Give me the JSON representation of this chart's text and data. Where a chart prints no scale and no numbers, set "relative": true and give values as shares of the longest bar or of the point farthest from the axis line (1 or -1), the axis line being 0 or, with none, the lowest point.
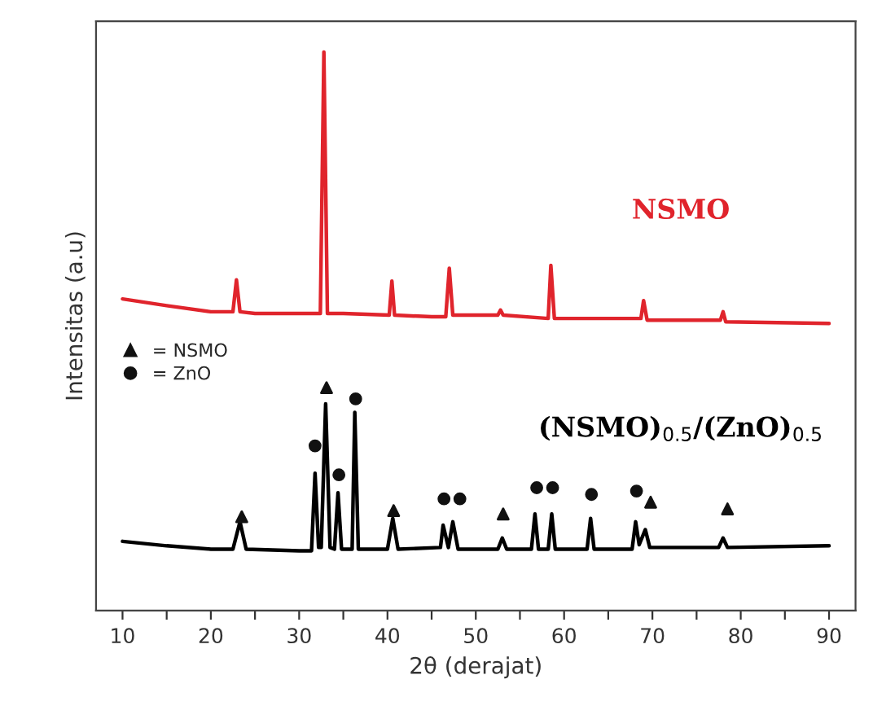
{
  "chart_data": {
    "type": "line",
    "xlabel": "2θ (derajat)",
    "ylabel": "Intensitas (a.u)",
    "relative": true,
    "tick_labels": "x",
    "grid": false,
    "legend": "left",
    "xlim": [
      7,
      93
    ],
    "xticks": [
      10,
      {
        "value": 15,
        "label": null
      },
      20,
      {
        "value": 25,
        "label": null
      },
      30,
      {
        "value": 35,
        "label": null
      },
      40,
      {
        "value": 45,
        "label": null
      },
      50,
      {
        "value": 55,
        "label": null
      },
      60,
      {
        "value": 65,
        "label": null
      },
      70,
      {
        "value": 75,
        "label": null
      },
      80,
      {
        "value": 85,
        "label": null
      },
      90
    ],
    "series": [
      {
        "name": "NSMO",
        "color": "#e0242c",
        "x": [
          10,
          15,
          20,
          22.5,
          22.9,
          23.3,
          25,
          32.4,
          32.8,
          33.2,
          35,
          40.2,
          40.5,
          40.8,
          45,
          46.6,
          47,
          47.4,
          52.5,
          52.8,
          53.1,
          58.2,
          58.5,
          58.9,
          68.7,
          69,
          69.4,
          77.7,
          78,
          78.3,
          90
        ],
        "values": [
          0.558,
          0.546,
          0.535,
          0.535,
          0.592,
          0.535,
          0.532,
          0.532,
          1.0,
          0.532,
          0.532,
          0.529,
          0.59,
          0.529,
          0.526,
          0.526,
          0.613,
          0.529,
          0.529,
          0.538,
          0.529,
          0.523,
          0.618,
          0.523,
          0.523,
          0.555,
          0.52,
          0.52,
          0.535,
          0.517,
          0.514
        ]
      },
      {
        "name": "(NSMO)$_{0.5}$/(ZnO)$_{0.5}$",
        "color": "#000000",
        "x": [
          10,
          15,
          20,
          22.5,
          23.3,
          24,
          30,
          31.4,
          31.8,
          32.2,
          32.5,
          33.0,
          33.5,
          34,
          34.4,
          34.8,
          36,
          36.3,
          36.7,
          40,
          40.6,
          41.2,
          46,
          46.3,
          46.9,
          47.4,
          48,
          52.5,
          53,
          53.5,
          56.3,
          56.7,
          57.1,
          58.2,
          58.6,
          59,
          62.6,
          63.0,
          63.4,
          67.7,
          68.1,
          68.5,
          69.2,
          69.7,
          77.5,
          78,
          78.5,
          90
        ],
        "values": [
          0.124,
          0.116,
          0.11,
          0.11,
          0.159,
          0.11,
          0.107,
          0.107,
          0.246,
          0.113,
          0.113,
          0.37,
          0.113,
          0.11,
          0.211,
          0.11,
          0.11,
          0.355,
          0.11,
          0.11,
          0.165,
          0.11,
          0.113,
          0.153,
          0.113,
          0.159,
          0.11,
          0.11,
          0.13,
          0.11,
          0.11,
          0.173,
          0.11,
          0.11,
          0.173,
          0.11,
          0.11,
          0.165,
          0.11,
          0.11,
          0.159,
          0.118,
          0.145,
          0.113,
          0.113,
          0.13,
          0.113,
          0.116
        ]
      },
      {
        "name": "= NSMO",
        "type": "scatter",
        "marker": "triangle",
        "color": "#111111",
        "x": [
          23.5,
          33.1,
          40.7,
          53.1,
          69.8,
          78.5
        ],
        "values": [
          0.168,
          0.399,
          0.179,
          0.173,
          0.194,
          0.182
        ]
      },
      {
        "name": "= ZnO",
        "type": "scatter",
        "marker": "circle",
        "color": "#111111",
        "x": [
          31.8,
          34.5,
          36.4,
          46.4,
          48.2,
          56.9,
          58.7,
          63.1,
          68.2
        ],
        "values": [
          0.295,
          0.243,
          0.379,
          0.2,
          0.2,
          0.22,
          0.22,
          0.208,
          0.214
        ]
      }
    ]
  }
}
